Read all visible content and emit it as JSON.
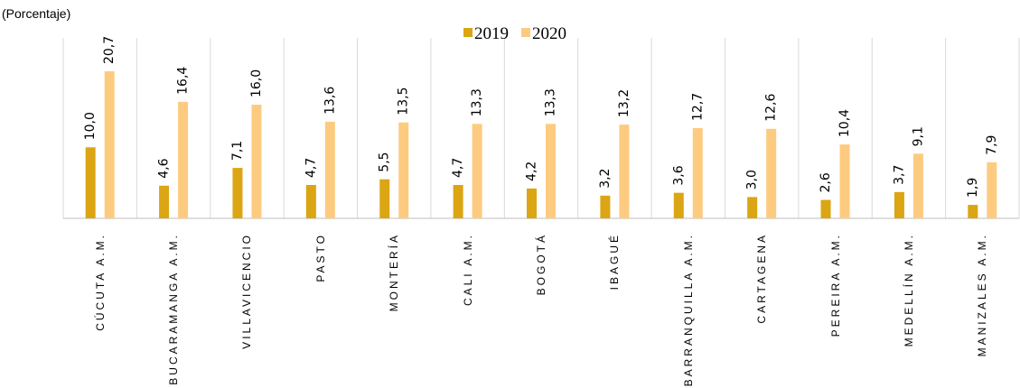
{
  "chart_data": {
    "type": "bar",
    "subtitle": "(Porcentaje)",
    "categories": [
      "CÚCUTA A.M.",
      "BUCARAMANGA A.M.",
      "VILLAVICENCIO",
      "PASTO",
      "MONTERÍA",
      "CALI A.M.",
      "BOGOTÁ",
      "IBAGUÉ",
      "BARRANQUILLA A.M.",
      "CARTAGENA",
      "PEREIRA A.M.",
      "MEDELLÍN A.M.",
      "MANIZALES A.M."
    ],
    "series": [
      {
        "name": "2019",
        "color": "#dba514",
        "values": [
          10.0,
          4.6,
          7.1,
          4.7,
          5.5,
          4.7,
          4.2,
          3.2,
          3.6,
          3.0,
          2.6,
          3.7,
          1.9
        ],
        "value_labels": [
          "10,0",
          "4,6",
          "7,1",
          "4,7",
          "5,5",
          "4,7",
          "4,2",
          "3,2",
          "3,6",
          "3,0",
          "2,6",
          "3,7",
          "1,9"
        ]
      },
      {
        "name": "2020",
        "color": "#fdcb80",
        "values": [
          20.7,
          16.4,
          16.0,
          13.6,
          13.5,
          13.3,
          13.3,
          13.2,
          12.7,
          12.6,
          10.4,
          9.1,
          7.9
        ],
        "value_labels": [
          "20,7",
          "16,4",
          "16,0",
          "13,6",
          "13,5",
          "13,3",
          "13,3",
          "13,2",
          "12,7",
          "12,6",
          "10,4",
          "9,1",
          "7,9"
        ]
      }
    ],
    "ylim": [
      0,
      25.4
    ],
    "grid": true,
    "legend": "top"
  }
}
